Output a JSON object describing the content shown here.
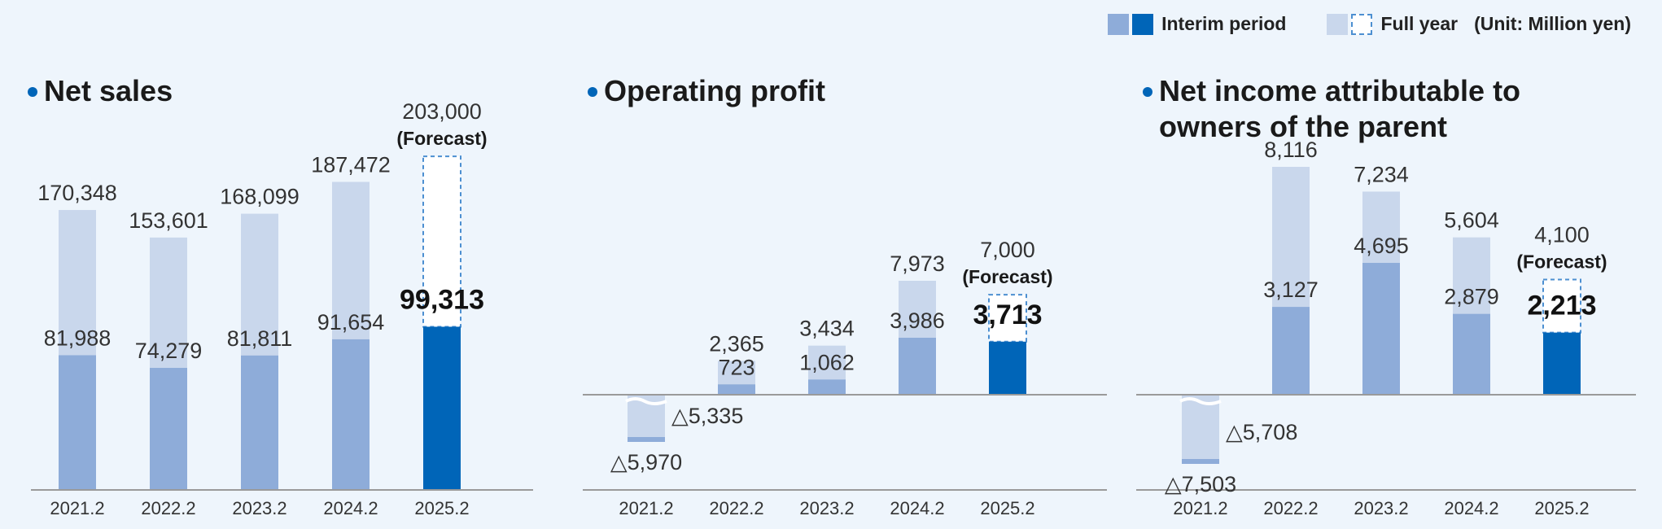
{
  "legend": {
    "interim_label": "Interim period",
    "fullyear_label": "Full year",
    "unit": "(Unit: Million yen)"
  },
  "colors": {
    "interim": "#8eacd9",
    "interim_current": "#0065b8",
    "full_year": "#c9d7ec",
    "forecast_border": "#4c8fd1",
    "axis": "#9a9a9a",
    "title_bullet": "#0065b8"
  },
  "chart_data": [
    {
      "type": "bar",
      "title": "Net sales",
      "categories": [
        "2021.2",
        "2022.2",
        "2023.2",
        "2024.2",
        "2025.2"
      ],
      "series": [
        {
          "name": "Interim period",
          "values": [
            81988,
            74279,
            81811,
            91654,
            99313
          ]
        },
        {
          "name": "Full year",
          "values": [
            170348,
            153601,
            168099,
            187472,
            203000
          ]
        }
      ],
      "value_labels": {
        "interim": [
          "81,988",
          "74,279",
          "81,811",
          "91,654",
          "99,313"
        ],
        "full_year": [
          "170,348",
          "153,601",
          "168,099",
          "187,472",
          "203,000"
        ]
      },
      "forecast_label": "(Forecast)",
      "forecast_index": 4,
      "ylim": [
        0,
        210000
      ]
    },
    {
      "type": "bar",
      "title": "Operating profit",
      "categories": [
        "2021.2",
        "2022.2",
        "2023.2",
        "2024.2",
        "2025.2"
      ],
      "series": [
        {
          "name": "Interim period",
          "values": [
            -5970,
            723,
            1062,
            3986,
            3713
          ]
        },
        {
          "name": "Full year",
          "values": [
            -5335,
            2365,
            3434,
            7973,
            7000
          ]
        }
      ],
      "value_labels": {
        "interim": [
          "△5,970",
          "723",
          "1,062",
          "3,986",
          "3,713"
        ],
        "full_year": [
          "△5,335",
          "2,365",
          "3,434",
          "7,973",
          "7,000"
        ]
      },
      "forecast_label": "(Forecast)",
      "forecast_index": 4
    },
    {
      "type": "bar",
      "title": "Net income attributable to owners of the parent",
      "title_lines": [
        "Net income attributable to",
        "owners of the parent"
      ],
      "categories": [
        "2021.2",
        "2022.2",
        "2023.2",
        "2024.2",
        "2025.2"
      ],
      "series": [
        {
          "name": "Interim period",
          "values": [
            -7503,
            3127,
            4695,
            2879,
            2213
          ]
        },
        {
          "name": "Full year",
          "values": [
            -5708,
            8116,
            7234,
            5604,
            4100
          ]
        }
      ],
      "value_labels": {
        "interim": [
          "△7,503",
          "3,127",
          "4,695",
          "2,879",
          "2,213"
        ],
        "full_year": [
          "△5,708",
          "8,116",
          "7,234",
          "5,604",
          "4,100"
        ]
      },
      "forecast_label": "(Forecast)",
      "forecast_index": 4
    }
  ]
}
